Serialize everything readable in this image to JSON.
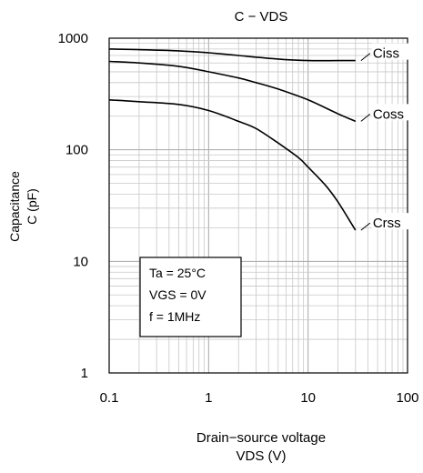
{
  "chart_data": {
    "type": "line",
    "title": "C − VDS",
    "xlabel": [
      "Drain−source voltage",
      "VDS (V)"
    ],
    "ylabel": [
      "Capacitance",
      "C (pF)"
    ],
    "x_scale": "log",
    "y_scale": "log",
    "xlim": [
      0.1,
      100
    ],
    "ylim": [
      1,
      1000
    ],
    "x_ticks": [
      0.1,
      1,
      10,
      100
    ],
    "x_tick_labels": [
      "0.1",
      "1",
      "10",
      "100"
    ],
    "y_ticks": [
      1,
      10,
      100,
      1000
    ],
    "y_tick_labels": [
      "1",
      "10",
      "100",
      "1000"
    ],
    "grid": true,
    "series": [
      {
        "name": "Ciss",
        "x": [
          0.1,
          0.2,
          0.5,
          1,
          2,
          5,
          10,
          20,
          30
        ],
        "y": [
          800,
          790,
          770,
          740,
          700,
          650,
          630,
          630,
          630
        ]
      },
      {
        "name": "Coss",
        "x": [
          0.1,
          0.2,
          0.5,
          1,
          2,
          3,
          5,
          10,
          20,
          30
        ],
        "y": [
          620,
          600,
          560,
          500,
          440,
          400,
          350,
          280,
          210,
          180
        ]
      },
      {
        "name": "Crss",
        "x": [
          0.1,
          0.2,
          0.5,
          1,
          2,
          3,
          5,
          8,
          10,
          15,
          20,
          30
        ],
        "y": [
          280,
          270,
          255,
          225,
          180,
          155,
          115,
          85,
          70,
          48,
          34,
          19
        ]
      }
    ],
    "annotation": {
      "lines": [
        "Ta = 25°C",
        "VGS = 0V",
        "f = 1MHz"
      ]
    },
    "colors": {
      "line": "#000000",
      "grid_major": "#a8a8a8",
      "grid_minor": "#c8c8c8",
      "frame": "#000000"
    }
  }
}
